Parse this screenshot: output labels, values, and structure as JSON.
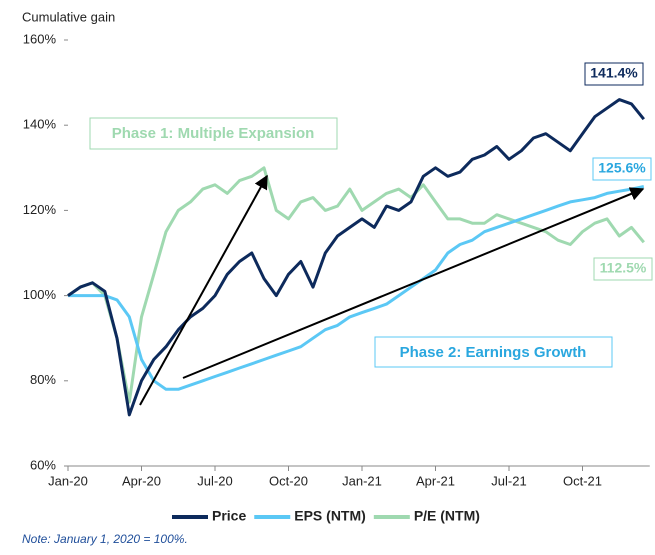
{
  "chart_data": {
    "type": "line",
    "ylabel": "Cumulative gain",
    "note": "Note: January 1, 2020 = 100%.",
    "categories": [
      "Jan-20",
      null,
      null,
      null,
      null,
      null,
      "Apr-20",
      null,
      null,
      null,
      null,
      null,
      "Jul-20",
      null,
      null,
      null,
      null,
      null,
      "Oct-20",
      null,
      null,
      null,
      null,
      null,
      "Jan-21",
      null,
      null,
      null,
      null,
      null,
      "Apr-21",
      null,
      null,
      null,
      null,
      null,
      "Jul-21",
      null,
      null,
      null,
      null,
      null,
      "Oct-21",
      null,
      null,
      null,
      null,
      null
    ],
    "series": [
      {
        "name": "Price",
        "color": "#0d2a5c",
        "values": [
          100,
          102,
          103,
          101,
          90,
          72,
          80,
          85,
          88,
          92,
          95,
          97,
          100,
          105,
          108,
          110,
          104,
          100,
          105,
          108,
          102,
          110,
          114,
          116,
          118,
          116,
          121,
          120,
          122,
          128,
          130,
          128,
          129,
          132,
          133,
          135,
          132,
          134,
          137,
          138,
          136,
          134,
          138,
          142,
          144,
          146,
          145,
          141.4
        ],
        "value_labels": [
          null,
          null,
          null,
          null,
          null,
          null,
          null,
          null,
          null,
          null,
          null,
          null,
          null,
          null,
          null,
          null,
          null,
          null,
          null,
          null,
          null,
          null,
          null,
          null,
          null,
          null,
          null,
          null,
          null,
          null,
          null,
          null,
          null,
          null,
          null,
          null,
          null,
          null,
          null,
          null,
          null,
          null,
          null,
          null,
          null,
          null,
          null,
          "141.4%"
        ]
      },
      {
        "name": "EPS (NTM)",
        "color": "#5bc8f5",
        "values": [
          100,
          100,
          100,
          100,
          99,
          95,
          85,
          80,
          78,
          78,
          79,
          80,
          81,
          82,
          83,
          84,
          85,
          86,
          87,
          88,
          90,
          92,
          93,
          95,
          96,
          97,
          98,
          100,
          102,
          104,
          106,
          110,
          112,
          113,
          115,
          116,
          117,
          118,
          119,
          120,
          121,
          122,
          122.5,
          123,
          124,
          124.5,
          125,
          125.6
        ],
        "value_labels": [
          null,
          null,
          null,
          null,
          null,
          null,
          null,
          null,
          null,
          null,
          null,
          null,
          null,
          null,
          null,
          null,
          null,
          null,
          null,
          null,
          null,
          null,
          null,
          null,
          null,
          null,
          null,
          null,
          null,
          null,
          null,
          null,
          null,
          null,
          null,
          null,
          null,
          null,
          null,
          null,
          null,
          null,
          null,
          null,
          null,
          null,
          null,
          "125.6%"
        ]
      },
      {
        "name": "P/E (NTM)",
        "color": "#9fd9b0",
        "values": [
          100,
          102,
          103,
          100,
          90,
          75,
          95,
          105,
          115,
          120,
          122,
          125,
          126,
          124,
          127,
          128,
          130,
          120,
          118,
          122,
          123,
          120,
          121,
          125,
          120,
          122,
          124,
          125,
          123,
          126,
          122,
          118,
          118,
          117,
          117,
          119,
          118,
          117,
          116,
          115,
          113,
          112,
          115,
          117,
          118,
          114,
          116,
          112.5
        ],
        "value_labels": [
          null,
          null,
          null,
          null,
          null,
          null,
          null,
          null,
          null,
          null,
          null,
          null,
          null,
          null,
          null,
          null,
          null,
          null,
          null,
          null,
          null,
          null,
          null,
          null,
          null,
          null,
          null,
          null,
          null,
          null,
          null,
          null,
          null,
          null,
          null,
          null,
          null,
          null,
          null,
          null,
          null,
          null,
          null,
          null,
          null,
          null,
          null,
          "112.5%"
        ]
      }
    ],
    "ylim": [
      60,
      160
    ],
    "yticks": [
      {
        "value": 60,
        "label": "60%"
      },
      {
        "value": 80,
        "label": "80%"
      },
      {
        "value": 100,
        "label": "100%"
      },
      {
        "value": 120,
        "label": "120%"
      },
      {
        "value": 140,
        "label": "140%"
      },
      {
        "value": 160,
        "label": "160%"
      }
    ],
    "annotations": [
      "Phase 1: Multiple Expansion",
      "Phase 2: Earnings Growth"
    ],
    "legend": "bottom"
  }
}
